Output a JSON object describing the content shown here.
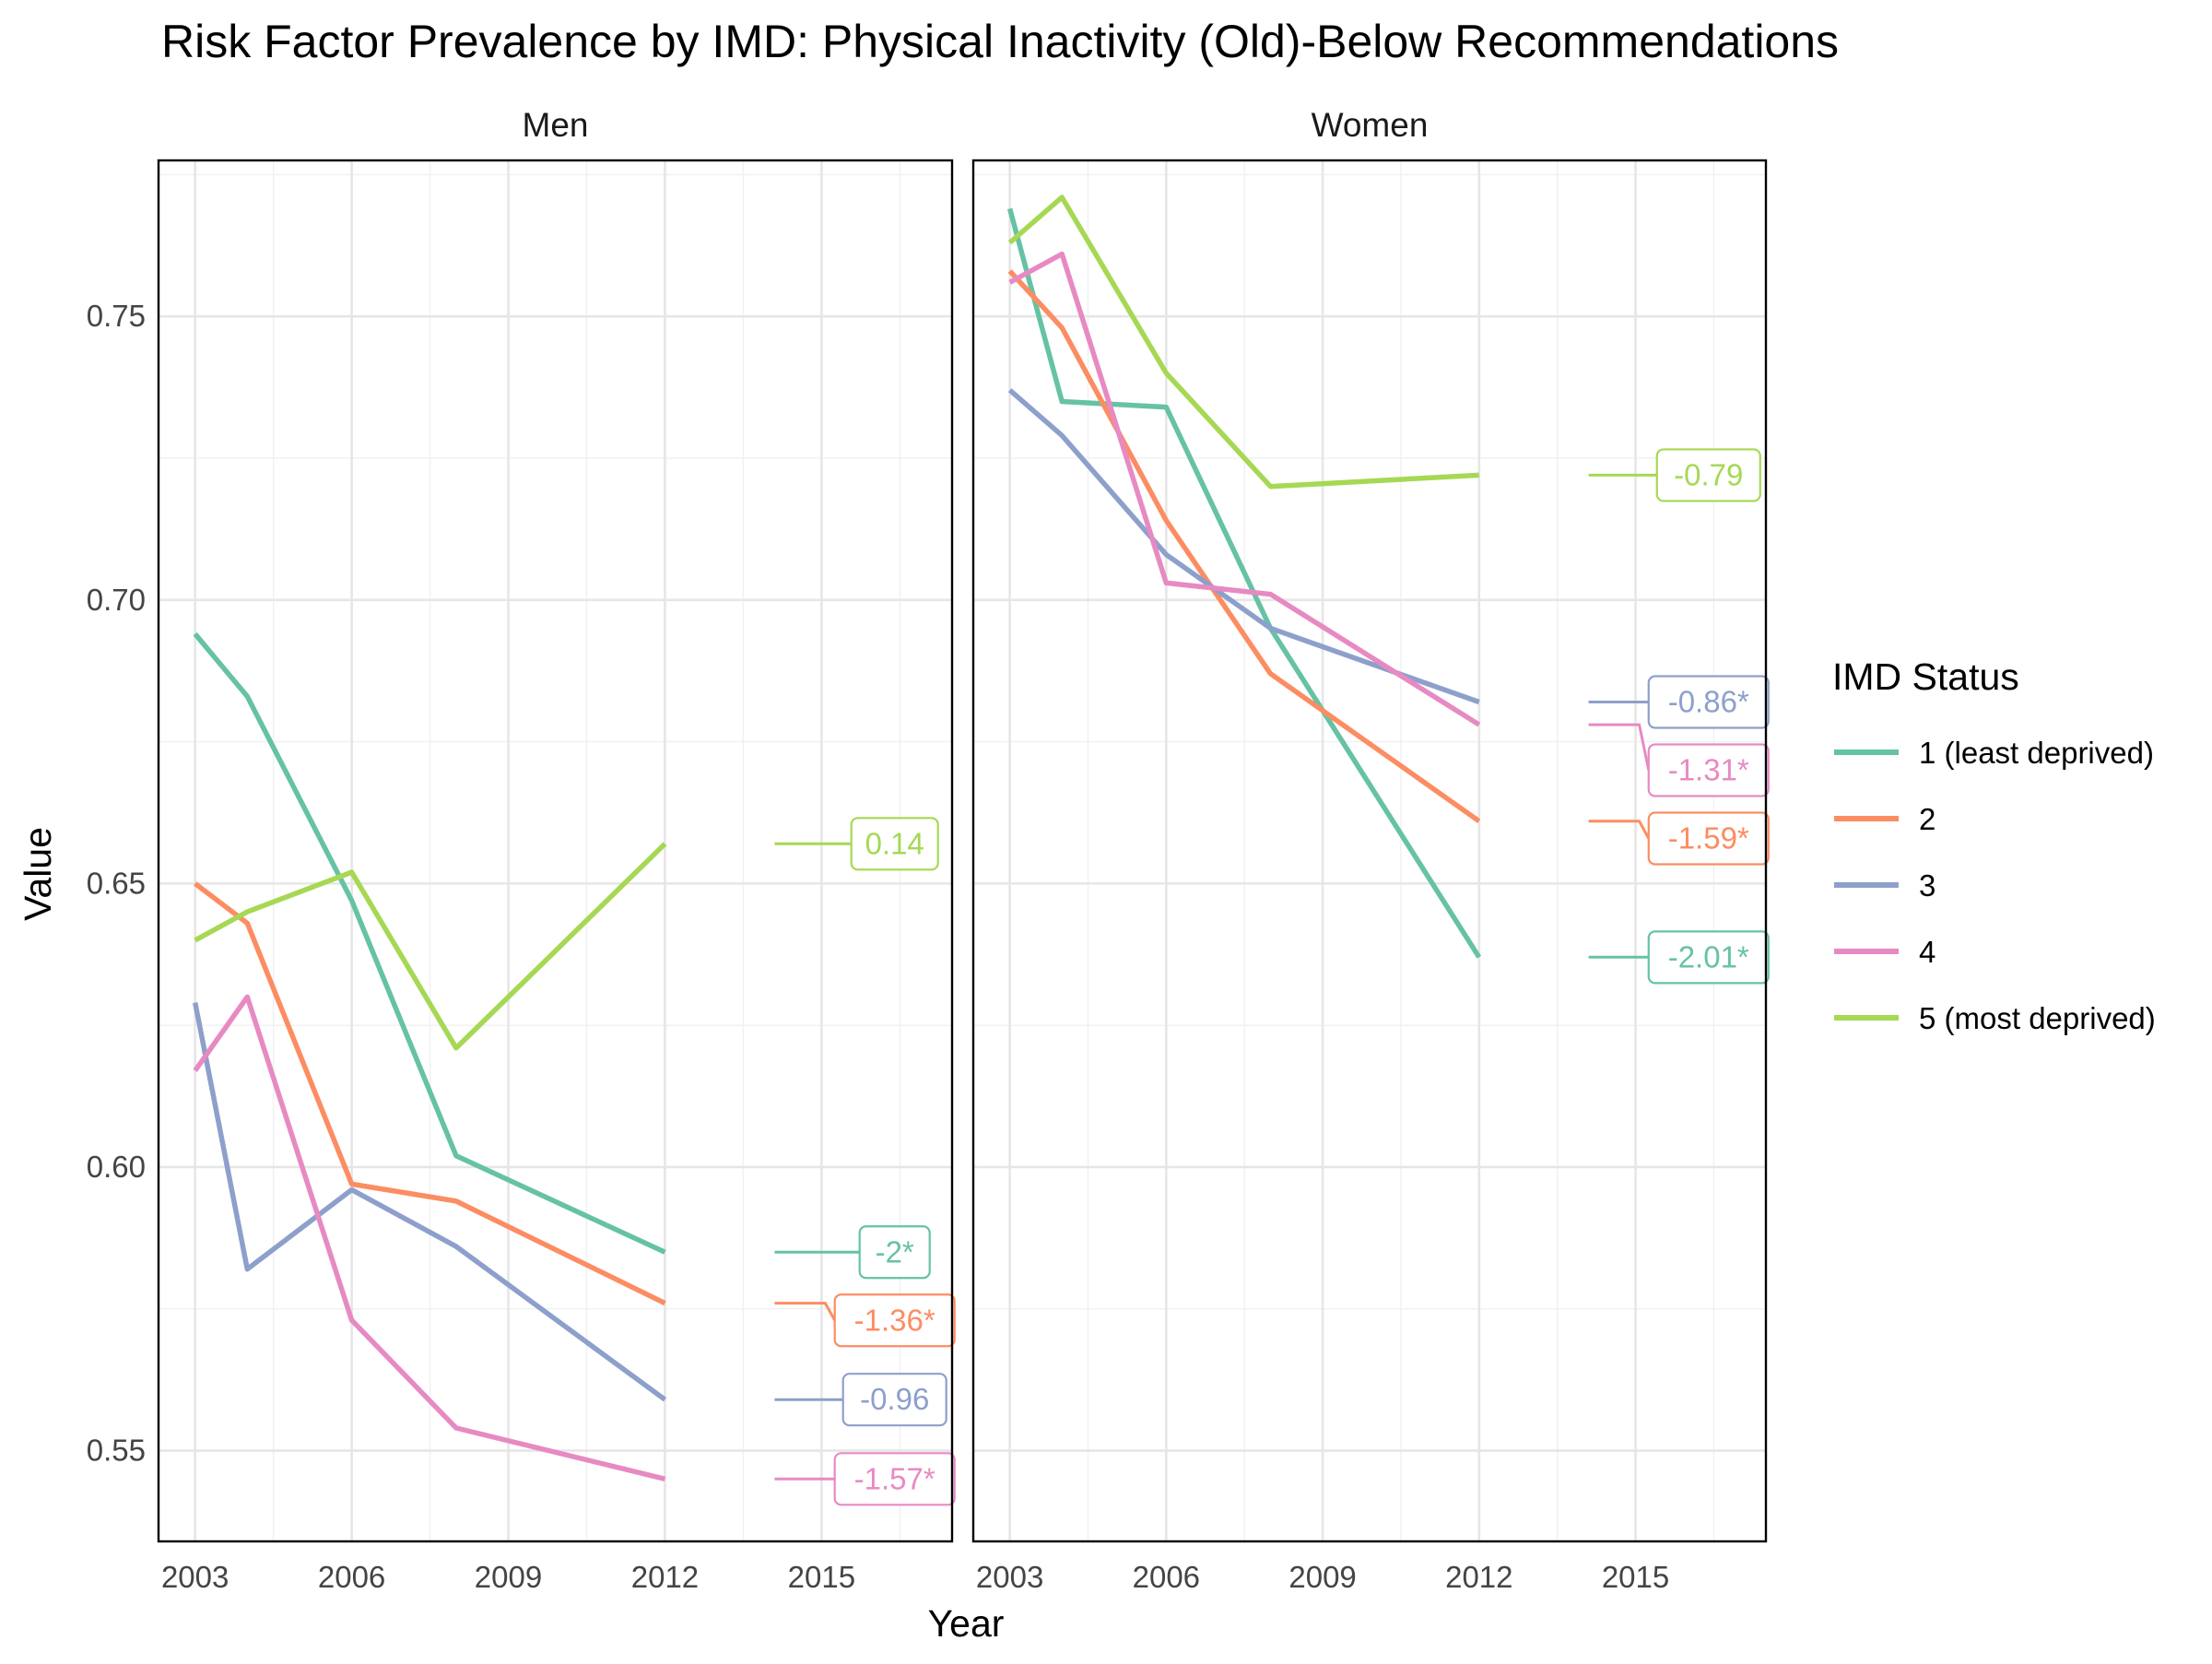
{
  "chart_data": {
    "type": "line",
    "title": "Risk Factor Prevalence by IMD: Physical Inactivity (Old)-Below Recommendations",
    "xlabel": "Year",
    "ylabel": "Value",
    "xlim": [
      2002.3,
      2017.5
    ],
    "ylim": [
      0.534,
      0.7775
    ],
    "x_ticks": [
      "2003",
      "2006",
      "2009",
      "2012",
      "2015"
    ],
    "x_tick_values": [
      2003,
      2006,
      2009,
      2012,
      2015
    ],
    "y_ticks": [
      "0.55",
      "0.60",
      "0.65",
      "0.70",
      "0.75"
    ],
    "y_tick_values": [
      0.55,
      0.6,
      0.65,
      0.7,
      0.75
    ],
    "grid": true,
    "legend_title": "IMD Status",
    "legend_position": "right",
    "legend": [
      {
        "name": "1 (least deprived)",
        "color": "#66c2a5"
      },
      {
        "name": "2",
        "color": "#fc8d62"
      },
      {
        "name": "3",
        "color": "#8da0cb"
      },
      {
        "name": "4",
        "color": "#e78ac3"
      },
      {
        "name": "5 (most deprived)",
        "color": "#a6d854"
      }
    ],
    "panels": [
      {
        "name": "Men",
        "series": [
          {
            "name": "1 (least deprived)",
            "color": "#66c2a5",
            "x": [
              2003,
              2004,
              2006,
              2008,
              2012
            ],
            "y": [
              0.694,
              0.683,
              0.647,
              0.602,
              0.585
            ],
            "trend_label": "-2*"
          },
          {
            "name": "2",
            "color": "#fc8d62",
            "x": [
              2003,
              2004,
              2006,
              2008,
              2012
            ],
            "y": [
              0.65,
              0.643,
              0.597,
              0.594,
              0.576
            ],
            "trend_label": "-1.36*"
          },
          {
            "name": "3",
            "color": "#8da0cb",
            "x": [
              2003,
              2004,
              2006,
              2008,
              2012
            ],
            "y": [
              0.629,
              0.582,
              0.596,
              0.586,
              0.559
            ],
            "trend_label": "-0.96"
          },
          {
            "name": "4",
            "color": "#e78ac3",
            "x": [
              2003,
              2004,
              2006,
              2008,
              2012
            ],
            "y": [
              0.617,
              0.63,
              0.573,
              0.554,
              0.545
            ],
            "trend_label": "-1.57*"
          },
          {
            "name": "5 (most deprived)",
            "color": "#a6d854",
            "x": [
              2003,
              2004,
              2006,
              2008,
              2012
            ],
            "y": [
              0.64,
              0.645,
              0.652,
              0.621,
              0.657
            ],
            "trend_label": "0.14"
          }
        ]
      },
      {
        "name": "Women",
        "series": [
          {
            "name": "1 (least deprived)",
            "color": "#66c2a5",
            "x": [
              2003,
              2004,
              2006,
              2008,
              2012
            ],
            "y": [
              0.769,
              0.735,
              0.734,
              0.695,
              0.637
            ],
            "trend_label": "-2.01*"
          },
          {
            "name": "2",
            "color": "#fc8d62",
            "x": [
              2003,
              2004,
              2006,
              2008,
              2012
            ],
            "y": [
              0.758,
              0.748,
              0.714,
              0.687,
              0.661
            ],
            "trend_label": "-1.59*"
          },
          {
            "name": "3",
            "color": "#8da0cb",
            "x": [
              2003,
              2004,
              2006,
              2008,
              2012
            ],
            "y": [
              0.737,
              0.729,
              0.708,
              0.695,
              0.682
            ],
            "trend_label": "-0.86*"
          },
          {
            "name": "4",
            "color": "#e78ac3",
            "x": [
              2003,
              2004,
              2006,
              2008,
              2012
            ],
            "y": [
              0.756,
              0.761,
              0.703,
              0.701,
              0.678
            ],
            "trend_label": "-1.31*"
          },
          {
            "name": "5 (most deprived)",
            "color": "#a6d854",
            "x": [
              2003,
              2004,
              2006,
              2008,
              2012
            ],
            "y": [
              0.763,
              0.771,
              0.74,
              0.72,
              0.722
            ],
            "trend_label": "-0.79"
          }
        ]
      }
    ]
  }
}
